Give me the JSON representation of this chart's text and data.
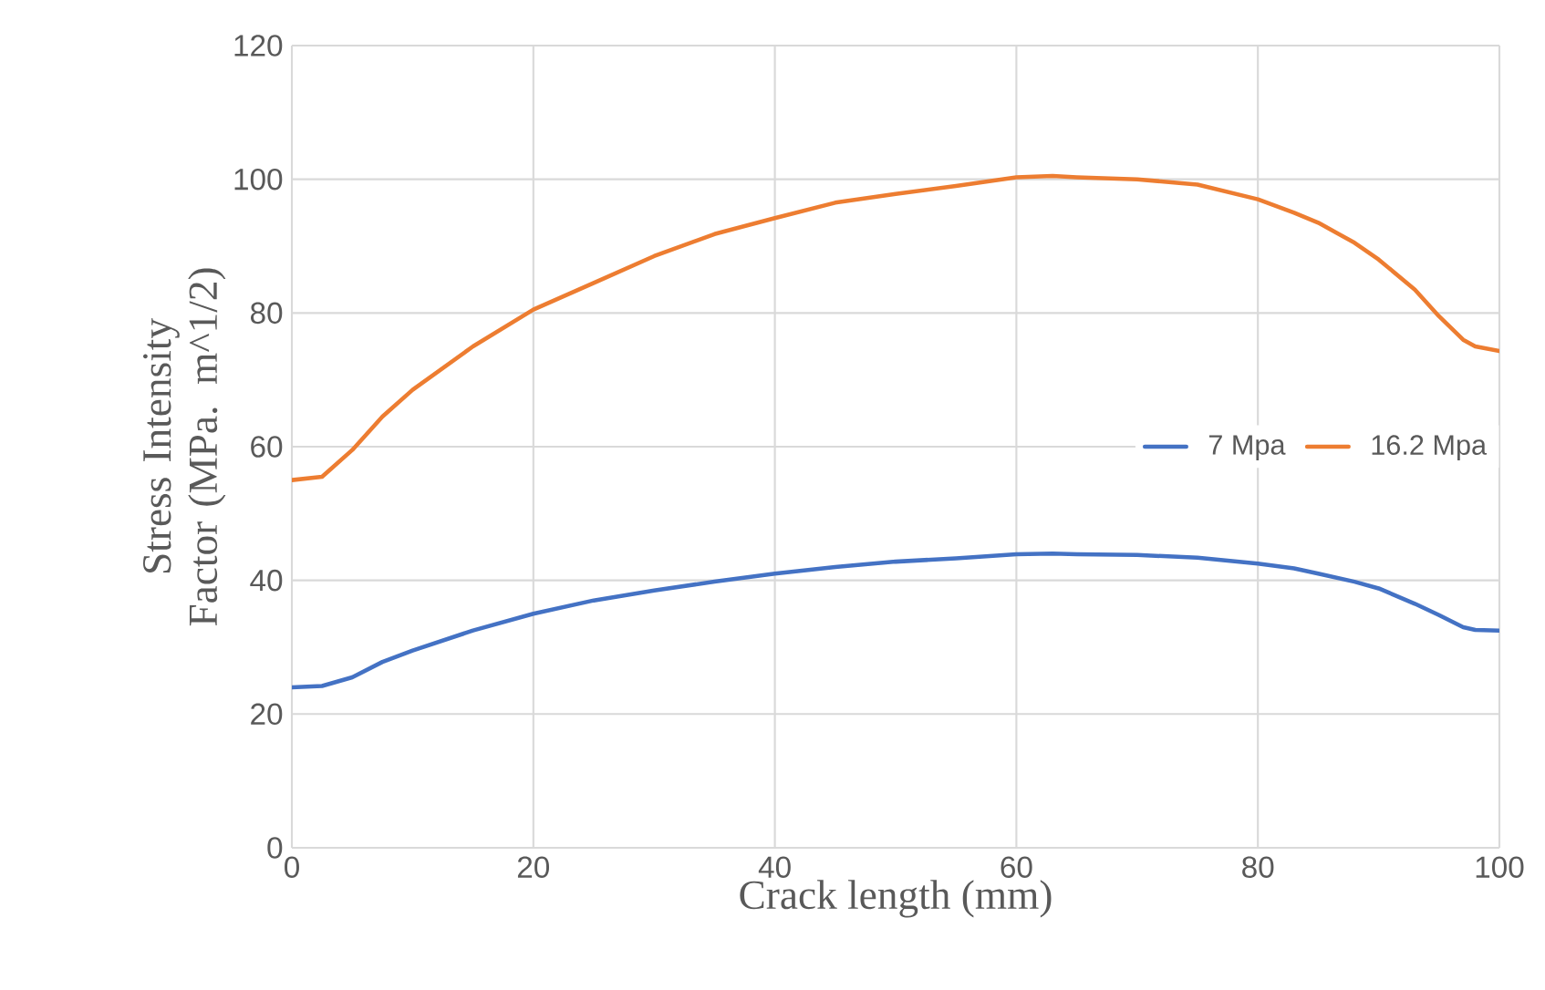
{
  "chart_data": {
    "type": "line",
    "xlabel": "Crack length (mm)",
    "ylabel": "Stress Intensity Factor (MPa. m^1/2)",
    "x": [
      0,
      2.5,
      5,
      7.5,
      10,
      15,
      20,
      25,
      30,
      35,
      40,
      45,
      50,
      55,
      60,
      63,
      65,
      70,
      75,
      80,
      83,
      85,
      88,
      90,
      93,
      95,
      97,
      98,
      100
    ],
    "series": [
      {
        "name": "7 Mpa",
        "color": "#4472c4",
        "values": [
          24,
          24.2,
          25.5,
          27.8,
          29.5,
          32.5,
          35,
          37,
          38.5,
          39.8,
          41,
          42,
          42.8,
          43.3,
          43.9,
          44,
          43.9,
          43.8,
          43.4,
          42.5,
          41.8,
          41,
          39.8,
          38.8,
          36.5,
          34.8,
          33,
          32.6,
          32.5
        ]
      },
      {
        "name": "16.2 Mpa",
        "color": "#ed7d31",
        "values": [
          55,
          55.5,
          59.5,
          64.5,
          68.5,
          75,
          80.5,
          84.5,
          88.5,
          91.8,
          94.2,
          96.5,
          97.8,
          99,
          100.3,
          100.5,
          100.3,
          100,
          99.2,
          97,
          95,
          93.5,
          90.5,
          88,
          83.5,
          79.5,
          76,
          75,
          74.3
        ]
      }
    ],
    "xlim": [
      0,
      100
    ],
    "ylim": [
      0,
      120
    ],
    "xticks": [
      0,
      20,
      40,
      60,
      80,
      100
    ],
    "yticks": [
      0,
      20,
      40,
      60,
      80,
      100,
      120
    ],
    "grid": true,
    "legend": "right",
    "marker": "none",
    "line_style": "solid"
  }
}
